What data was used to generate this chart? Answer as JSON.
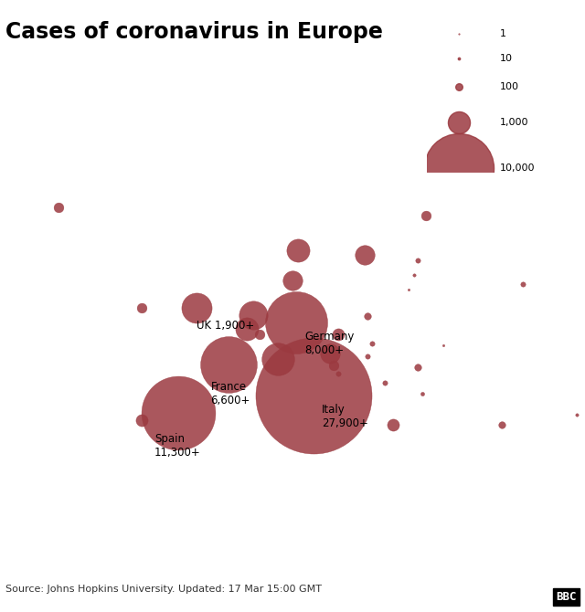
{
  "title": "Cases of coronavirus in Europe",
  "source_text": "Source: Johns Hopkins University. Updated: 17 Mar 15:00 GMT",
  "bbc_text": "BBC",
  "map_land": "#e8b4b8",
  "map_border": "#c07878",
  "map_ocean": "#ffffff",
  "bubble_color": "#9b3a40",
  "legend_values": [
    1,
    10,
    100,
    1000,
    10000
  ],
  "legend_labels": [
    "1",
    "10",
    "100",
    "1,000",
    "10,000"
  ],
  "scale_factor": 3000,
  "countries_data": [
    {
      "lon": 12.5,
      "lat": 42.5,
      "cases": 27900,
      "label": "Italy\n27,900+",
      "llon": 13.5,
      "llat": 41.5
    },
    {
      "lon": -3.7,
      "lat": 40.4,
      "cases": 11300,
      "label": "Spain\n11,300+",
      "llon": -6.5,
      "llat": 38.0
    },
    {
      "lon": 10.4,
      "lat": 51.2,
      "cases": 8000,
      "label": "Germany\n8,000+",
      "llon": 11.5,
      "llat": 50.2
    },
    {
      "lon": 2.3,
      "lat": 46.2,
      "cases": 6600,
      "label": "France\n6,600+",
      "llon": 0.2,
      "llat": 44.2
    },
    {
      "lon": -1.5,
      "lat": 53.0,
      "cases": 1900,
      "label": "UK 1,900+",
      "llon": -1.5,
      "llat": 51.5
    },
    {
      "lon": 8.2,
      "lat": 46.8,
      "cases": 2200,
      "label": "",
      "llon": 0,
      "llat": 0
    },
    {
      "lon": 10.7,
      "lat": 59.9,
      "cases": 1100,
      "label": "",
      "llon": 0,
      "llat": 0
    },
    {
      "lon": 18.6,
      "lat": 59.3,
      "cases": 800,
      "label": "",
      "llon": 0,
      "llat": 0
    },
    {
      "lon": 10.0,
      "lat": 56.2,
      "cases": 800,
      "label": "",
      "llon": 0,
      "llat": 0
    },
    {
      "lon": 5.3,
      "lat": 52.1,
      "cases": 1700,
      "label": "",
      "llon": 0,
      "llat": 0
    },
    {
      "lon": 4.5,
      "lat": 50.5,
      "cases": 1100,
      "label": "",
      "llon": 0,
      "llat": 0
    },
    {
      "lon": 14.5,
      "lat": 47.5,
      "cases": 800,
      "label": "",
      "llon": 0,
      "llat": 0
    },
    {
      "lon": -8.0,
      "lat": 39.5,
      "cases": 300,
      "label": "",
      "llon": 0,
      "llat": 0
    },
    {
      "lon": 26.0,
      "lat": 64.0,
      "cases": 200,
      "label": "",
      "llon": 0,
      "llat": 0
    },
    {
      "lon": 22.0,
      "lat": 39.0,
      "cases": 300,
      "label": "",
      "llon": 0,
      "llat": 0
    },
    {
      "lon": -18.0,
      "lat": 65.0,
      "cases": 200,
      "label": "",
      "llon": 0,
      "llat": 0
    },
    {
      "lon": -8.0,
      "lat": 53.0,
      "cases": 200,
      "label": "",
      "llon": 0,
      "llat": 0
    },
    {
      "lon": 19.0,
      "lat": 52.0,
      "cases": 100,
      "label": "",
      "llon": 0,
      "llat": 0
    },
    {
      "lon": 15.5,
      "lat": 49.8,
      "cases": 300,
      "label": "",
      "llon": 0,
      "llat": 0
    },
    {
      "lon": 25.0,
      "lat": 45.9,
      "cases": 100,
      "label": "",
      "llon": 0,
      "llat": 0
    },
    {
      "lon": 37.6,
      "lat": 55.8,
      "cases": 50,
      "label": "",
      "llon": 0,
      "llat": 0
    },
    {
      "lon": 35.0,
      "lat": 39.0,
      "cases": 100,
      "label": "",
      "llon": 0,
      "llat": 0
    },
    {
      "lon": 21.0,
      "lat": 44.0,
      "cases": 50,
      "label": "",
      "llon": 0,
      "llat": 0
    },
    {
      "lon": 15.5,
      "lat": 45.1,
      "cases": 50,
      "label": "",
      "llon": 0,
      "llat": 0
    },
    {
      "lon": 19.0,
      "lat": 47.2,
      "cases": 50,
      "label": "",
      "llon": 0,
      "llat": 0
    },
    {
      "lon": 19.5,
      "lat": 48.7,
      "cases": 50,
      "label": "",
      "llon": 0,
      "llat": 0
    },
    {
      "lon": 25.0,
      "lat": 58.6,
      "cases": 50,
      "label": "",
      "llon": 0,
      "llat": 0
    },
    {
      "lon": 24.6,
      "lat": 56.9,
      "cases": 20,
      "label": "",
      "llon": 0,
      "llat": 0
    },
    {
      "lon": 23.9,
      "lat": 55.2,
      "cases": 10,
      "label": "",
      "llon": 0,
      "llat": 0
    },
    {
      "lon": 25.5,
      "lat": 42.7,
      "cases": 30,
      "label": "",
      "llon": 0,
      "llat": 0
    },
    {
      "lon": 6.1,
      "lat": 49.8,
      "cases": 200,
      "label": "",
      "llon": 0,
      "llat": 0
    },
    {
      "lon": 14.9,
      "lat": 46.1,
      "cases": 200,
      "label": "",
      "llon": 0,
      "llat": 0
    },
    {
      "lon": 28.0,
      "lat": 48.5,
      "cases": 10,
      "label": "",
      "llon": 0,
      "llat": 0
    },
    {
      "lon": 44.0,
      "lat": 40.2,
      "cases": 20,
      "label": "",
      "llon": 0,
      "llat": 0
    },
    {
      "lon": 49.0,
      "lat": 55.0,
      "cases": 5,
      "label": "",
      "llon": 0,
      "llat": 0
    }
  ],
  "lon_min": -25,
  "lon_max": 45,
  "lat_min": 34,
  "lat_max": 72,
  "figsize": [
    6.4,
    6.7
  ],
  "dpi": 100,
  "title_fontsize": 17,
  "label_fontsize": 8.5,
  "source_fontsize": 8
}
